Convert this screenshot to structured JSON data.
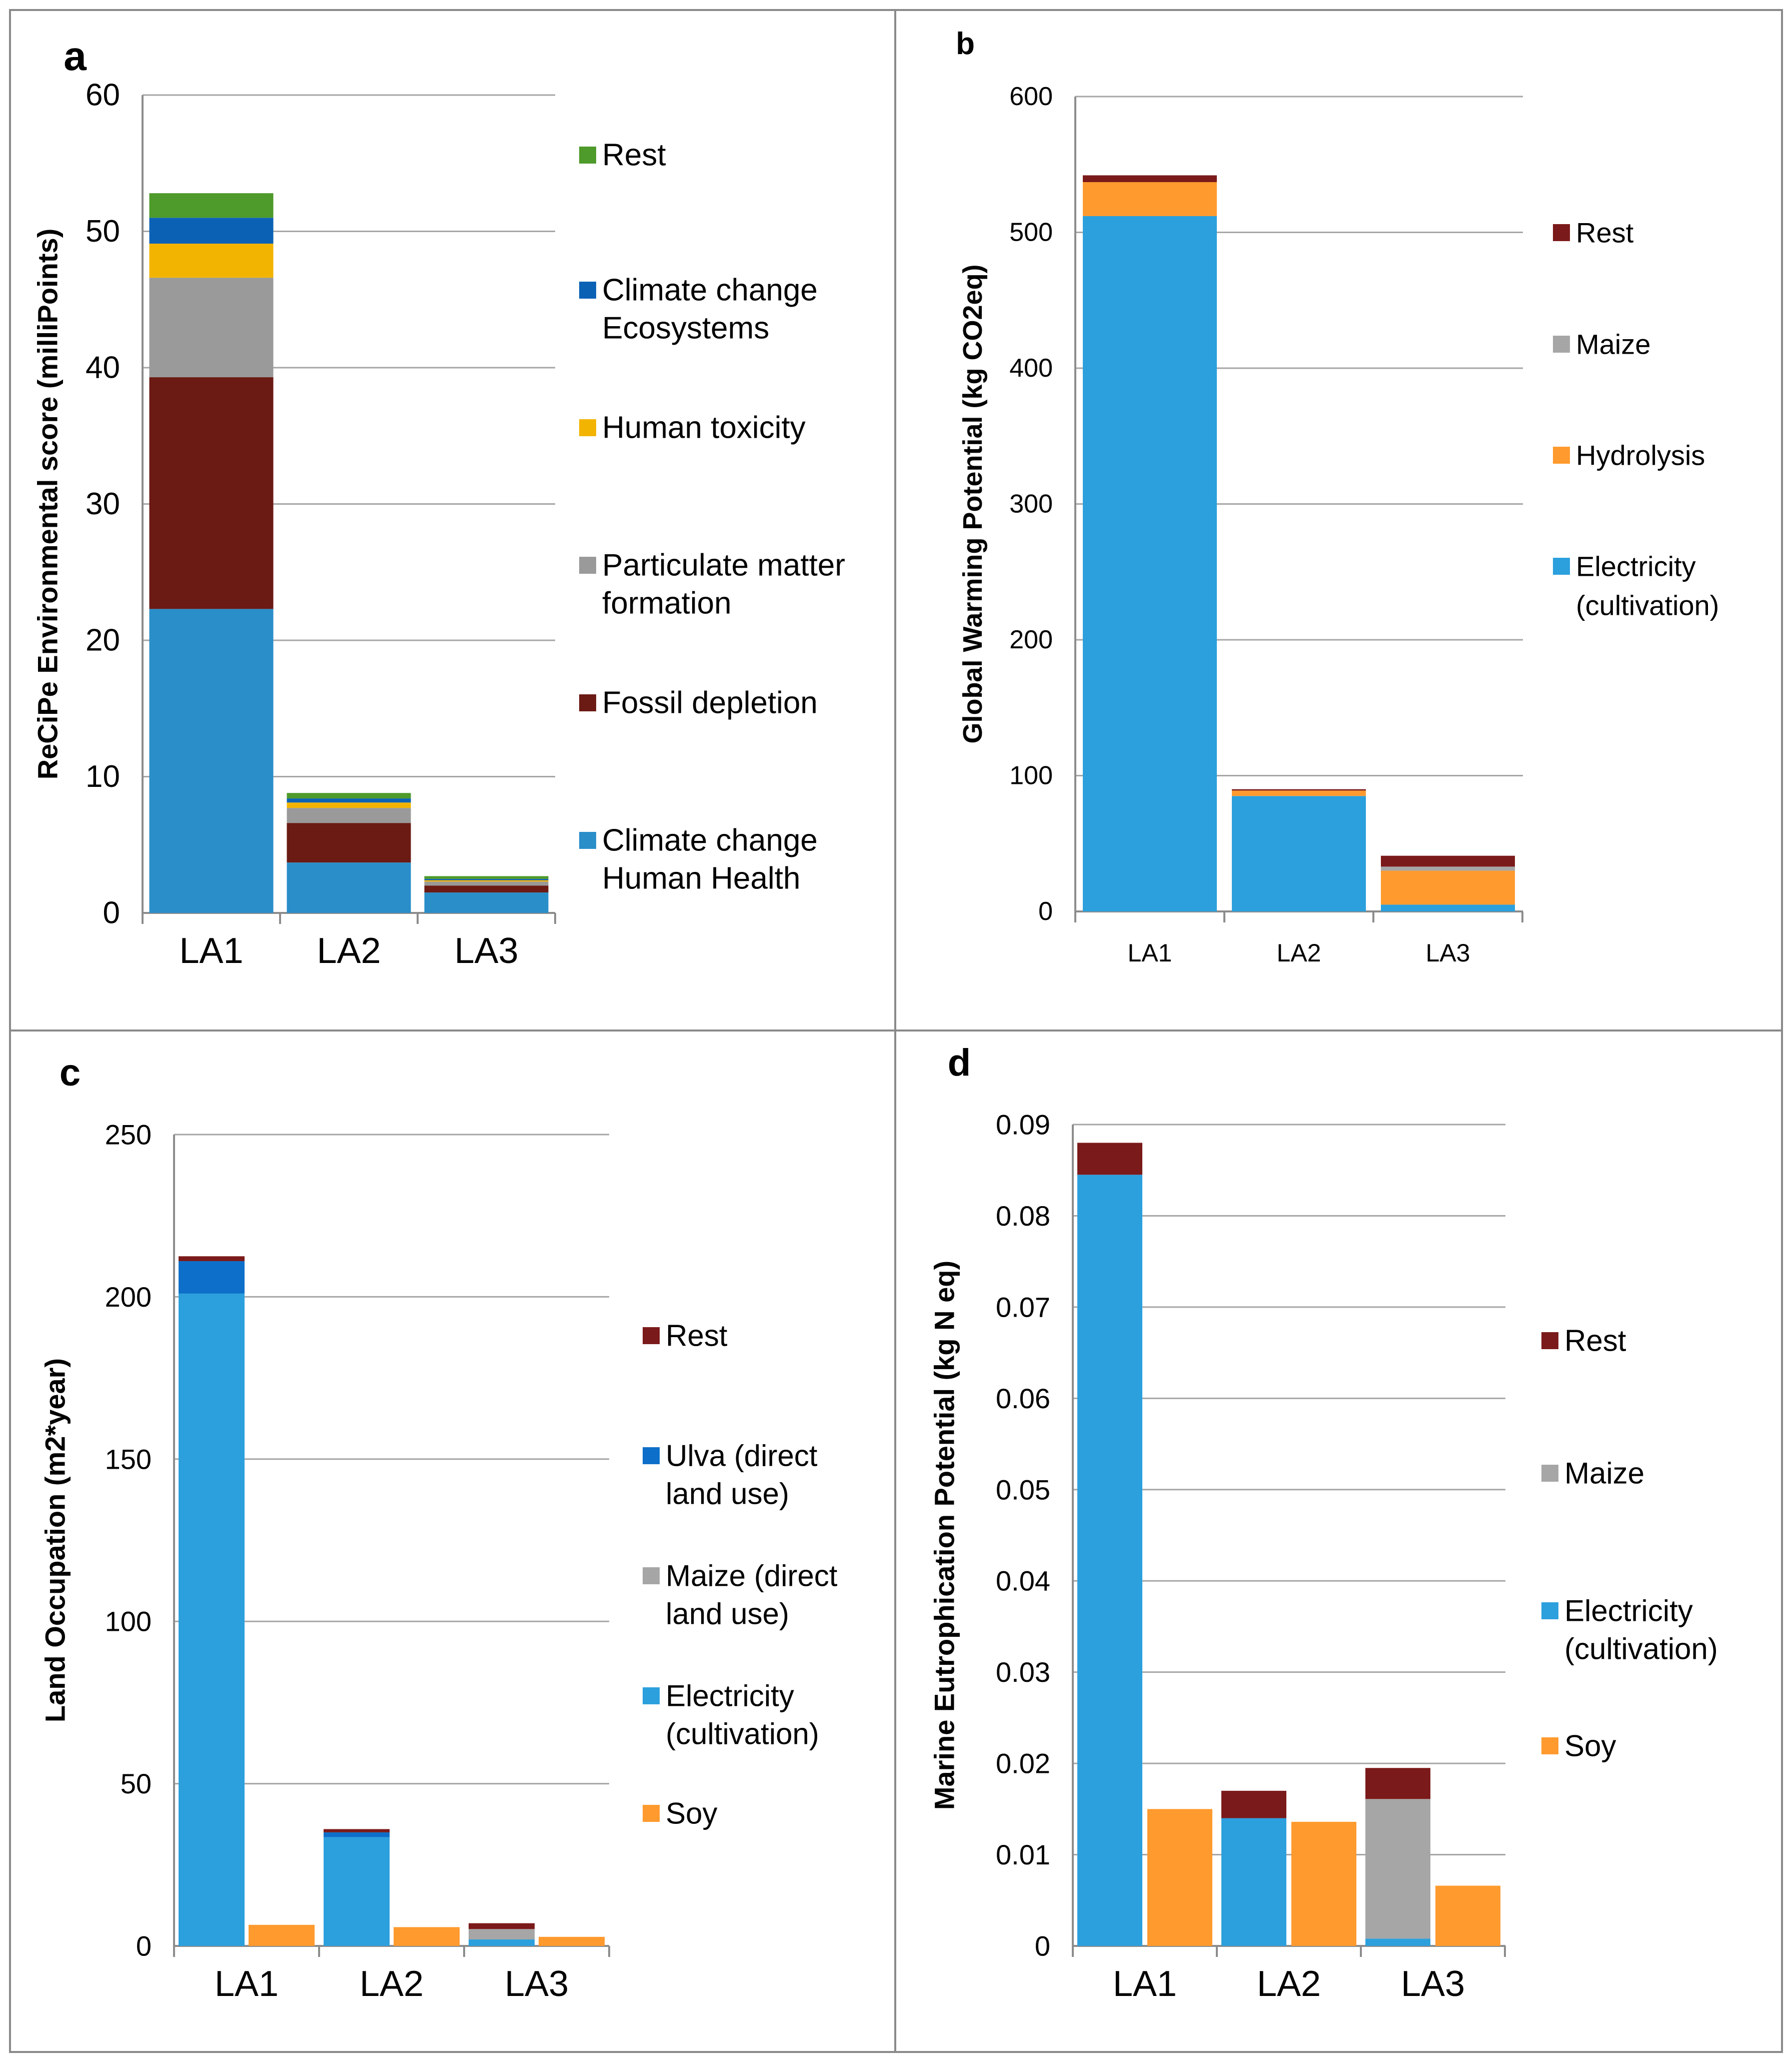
{
  "colors": {
    "rest_green": "#4e9a2a",
    "cc_ecosystems": "#0b62b5",
    "human_tox": "#f2b400",
    "pm_gray": "#9a9a9a",
    "fossil": "#6b1a14",
    "cc_human": "#2a8ec9",
    "rest": "#7b1a1a",
    "maize": "#a6a6a6",
    "hydrolysis": "#ff9a2e",
    "electricity": "#2ca0dd",
    "ulva": "#0d6fc9",
    "soy": "#ff9a2e",
    "grid": "#a6a6a6",
    "axis": "#8c8c8c",
    "panel_border": "#8a8a8a"
  },
  "chart_data": [
    {
      "id": "a",
      "panel_label": "a",
      "type": "bar",
      "stacked": true,
      "ylabel": "ReCiPe Environmental score (milliPoints)",
      "ylim": [
        0,
        60
      ],
      "yticks": [
        "0",
        "10",
        "20",
        "30",
        "40",
        "50",
        "60"
      ],
      "categories": [
        "LA1",
        "LA2",
        "LA3"
      ],
      "series": [
        {
          "name": "Climate change Human Health",
          "legend_lines": [
            "Climate change",
            "Human Health"
          ],
          "color": "#2a8ec9",
          "values": [
            22.3,
            3.7,
            1.5
          ]
        },
        {
          "name": "Fossil depletion",
          "legend_lines": [
            "Fossil depletion"
          ],
          "color": "#6b1a14",
          "values": [
            17.0,
            2.9,
            0.5
          ]
        },
        {
          "name": "Particulate matter formation",
          "legend_lines": [
            "Particulate matter",
            "formation"
          ],
          "color": "#9a9a9a",
          "values": [
            7.3,
            1.1,
            0.3
          ]
        },
        {
          "name": "Human toxicity",
          "legend_lines": [
            "Human toxicity"
          ],
          "color": "#f2b400",
          "values": [
            2.5,
            0.4,
            0.1
          ]
        },
        {
          "name": "Climate change Ecosystems",
          "legend_lines": [
            "Climate change",
            "Ecosystems"
          ],
          "color": "#0b62b5",
          "values": [
            1.9,
            0.3,
            0.1
          ]
        },
        {
          "name": "Rest",
          "legend_lines": [
            "Rest"
          ],
          "color": "#4e9a2a",
          "values": [
            1.8,
            0.4,
            0.2
          ]
        }
      ],
      "legend_order": [
        5,
        4,
        3,
        2,
        1,
        0
      ],
      "legend_position": "right"
    },
    {
      "id": "b",
      "panel_label": "b",
      "type": "bar",
      "stacked": true,
      "ylabel": "Global Warming Potential (kg CO2eq)",
      "ylim": [
        0,
        600
      ],
      "yticks": [
        "0",
        "100",
        "200",
        "300",
        "400",
        "500",
        "600"
      ],
      "categories": [
        "LA1",
        "LA2",
        "LA3"
      ],
      "series": [
        {
          "name": "Electricity (cultivation)",
          "legend_lines": [
            "Electricity",
            "(cultivation)"
          ],
          "color": "#2ca0dd",
          "values": [
            512,
            85,
            5
          ]
        },
        {
          "name": "Hydrolysis",
          "legend_lines": [
            "Hydrolysis"
          ],
          "color": "#ff9a2e",
          "values": [
            25,
            4,
            25
          ]
        },
        {
          "name": "Maize",
          "legend_lines": [
            "Maize"
          ],
          "color": "#a6a6a6",
          "values": [
            0,
            0,
            3
          ]
        },
        {
          "name": "Rest",
          "legend_lines": [
            "Rest"
          ],
          "color": "#7b1a1a",
          "values": [
            5,
            1,
            8
          ]
        }
      ],
      "legend_order": [
        3,
        2,
        1,
        0
      ],
      "legend_position": "right"
    },
    {
      "id": "c",
      "panel_label": "c",
      "type": "bar",
      "stacked": true,
      "ylabel": "Land Occupation (m2*year)",
      "ylim": [
        0,
        250
      ],
      "yticks": [
        "0",
        "50",
        "100",
        "150",
        "200",
        "250"
      ],
      "categories": [
        "LA1",
        "LA2",
        "LA3"
      ],
      "stacks": [
        {
          "category": 0,
          "slot": 0,
          "segments": [
            {
              "series": "Electricity (cultivation)",
              "value": 201
            },
            {
              "series": "Ulva (direct land use)",
              "value": 10
            },
            {
              "series": "Rest",
              "value": 1.5
            }
          ]
        },
        {
          "category": 0,
          "slot": 1,
          "segments": [
            {
              "series": "Soy",
              "value": 6.5
            }
          ]
        },
        {
          "category": 1,
          "slot": 0,
          "segments": [
            {
              "series": "Electricity (cultivation)",
              "value": 33.5
            },
            {
              "series": "Ulva (direct land use)",
              "value": 1.5
            },
            {
              "series": "Rest",
              "value": 1
            }
          ]
        },
        {
          "category": 1,
          "slot": 1,
          "segments": [
            {
              "series": "Soy",
              "value": 5.8
            }
          ]
        },
        {
          "category": 2,
          "slot": 0,
          "segments": [
            {
              "series": "Electricity (cultivation)",
              "value": 2
            },
            {
              "series": "Maize (direct land use)",
              "value": 3.2
            },
            {
              "series": "Rest",
              "value": 1.8
            }
          ]
        },
        {
          "category": 2,
          "slot": 1,
          "segments": [
            {
              "series": "Soy",
              "value": 2.8
            }
          ]
        }
      ],
      "legend": [
        {
          "name": "Rest",
          "lines": [
            "Rest"
          ],
          "color": "#7b1a1a"
        },
        {
          "name": "Ulva (direct land use)",
          "lines": [
            "Ulva (direct",
            "land use)"
          ],
          "color": "#0d6fc9"
        },
        {
          "name": "Maize (direct land use)",
          "lines": [
            "Maize (direct",
            "land use)"
          ],
          "color": "#a6a6a6"
        },
        {
          "name": "Electricity (cultivation)",
          "lines": [
            "Electricity",
            "(cultivation)"
          ],
          "color": "#2ca0dd"
        },
        {
          "name": "Soy",
          "lines": [
            "Soy"
          ],
          "color": "#ff9a2e"
        }
      ],
      "legend_position": "right"
    },
    {
      "id": "d",
      "panel_label": "d",
      "type": "bar",
      "stacked": true,
      "ylabel": "Marine Eutrophication Potential (kg N eq)",
      "ylim": [
        0,
        0.09
      ],
      "yticks": [
        "0",
        "0.01",
        "0.02",
        "0.03",
        "0.04",
        "0.05",
        "0.06",
        "0.07",
        "0.08",
        "0.09"
      ],
      "categories": [
        "LA1",
        "LA2",
        "LA3"
      ],
      "stacks": [
        {
          "category": 0,
          "slot": 0,
          "segments": [
            {
              "series": "Electricity (cultivation)",
              "value": 0.0845
            },
            {
              "series": "Rest",
              "value": 0.0035
            }
          ]
        },
        {
          "category": 0,
          "slot": 1,
          "segments": [
            {
              "series": "Soy",
              "value": 0.015
            }
          ]
        },
        {
          "category": 1,
          "slot": 0,
          "segments": [
            {
              "series": "Electricity (cultivation)",
              "value": 0.014
            },
            {
              "series": "Rest",
              "value": 0.003
            }
          ]
        },
        {
          "category": 1,
          "slot": 1,
          "segments": [
            {
              "series": "Soy",
              "value": 0.0136
            }
          ]
        },
        {
          "category": 2,
          "slot": 0,
          "segments": [
            {
              "series": "Electricity (cultivation)",
              "value": 0.0008
            },
            {
              "series": "Maize",
              "value": 0.0153
            },
            {
              "series": "Rest",
              "value": 0.0034
            }
          ]
        },
        {
          "category": 2,
          "slot": 1,
          "segments": [
            {
              "series": "Soy",
              "value": 0.0066
            }
          ]
        }
      ],
      "legend": [
        {
          "name": "Rest",
          "lines": [
            "Rest"
          ],
          "color": "#7b1a1a"
        },
        {
          "name": "Maize",
          "lines": [
            "Maize"
          ],
          "color": "#a6a6a6"
        },
        {
          "name": "Electricity (cultivation)",
          "lines": [
            "Electricity",
            "(cultivation)"
          ],
          "color": "#2ca0dd"
        },
        {
          "name": "Soy",
          "lines": [
            "Soy"
          ],
          "color": "#ff9a2e"
        }
      ],
      "legend_position": "right"
    }
  ]
}
